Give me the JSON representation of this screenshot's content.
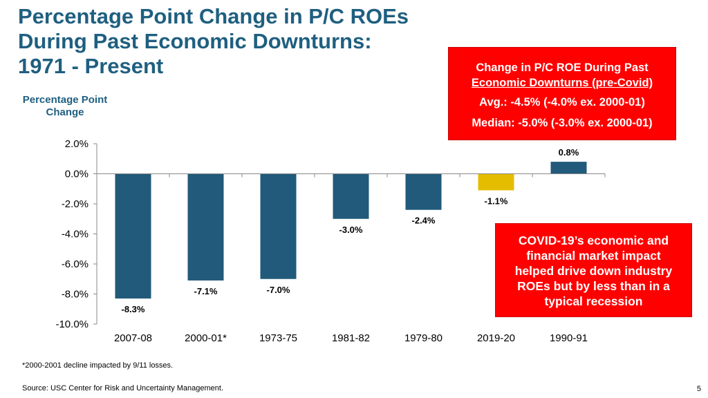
{
  "header": {
    "title_lines": [
      "Percentage Point Change in P/C ROEs",
      "During Past Economic Downturns:",
      "1971 - Present"
    ]
  },
  "y_axis_title_lines": [
    "Percentage Point",
    "Change"
  ],
  "stats_box": {
    "line1": "Change in P/C ROE During Past",
    "line2": "Economic Downturns (pre-Covid)",
    "avg": "Avg.: -4.5% (-4.0% ex. 2000-01)",
    "median": "Median: -5.0% (-3.0% ex. 2000-01)"
  },
  "covid_box": {
    "lines": [
      "COVID-19’s economic and",
      "financial market impact",
      "helped drive down industry",
      "ROEs but by less than in a",
      "typical recession"
    ]
  },
  "footnote": "*2000-2001 decline impacted by 9/11 losses.",
  "source": "Source: USC Center for Risk and Uncertainty Management.",
  "page_number": "5",
  "colors": {
    "bar": "#215a7a",
    "highlight_bar": "#e5bd00",
    "title": "#1f5f80",
    "box": "#ff0000"
  },
  "chart_data": {
    "type": "bar",
    "categories": [
      "2007-08",
      "2000-01*",
      "1973-75",
      "1981-82",
      "1979-80",
      "2019-20",
      "1990-91"
    ],
    "values": [
      -8.3,
      -7.1,
      -7.0,
      -3.0,
      -2.4,
      -1.1,
      0.8
    ],
    "data_labels": [
      "-8.3%",
      "-7.1%",
      "-7.0%",
      "-3.0%",
      "-2.4%",
      "-1.1%",
      "0.8%"
    ],
    "highlight_index": 5,
    "y_ticks": [
      2.0,
      0.0,
      -2.0,
      -4.0,
      -6.0,
      -8.0,
      -10.0
    ],
    "y_tick_labels": [
      "2.0%",
      "0.0%",
      "-2.0%",
      "-4.0%",
      "-6.0%",
      "-8.0%",
      "-10.0%"
    ],
    "ylim": [
      -10,
      2
    ],
    "ylabel": "Percentage Point Change",
    "title": "Percentage Point Change in P/C ROEs During Past Economic Downturns: 1971 - Present",
    "grid": false
  }
}
